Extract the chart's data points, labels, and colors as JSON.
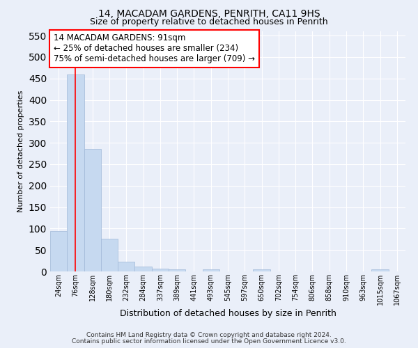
{
  "title1": "14, MACADAM GARDENS, PENRITH, CA11 9HS",
  "title2": "Size of property relative to detached houses in Penrith",
  "xlabel": "Distribution of detached houses by size in Penrith",
  "ylabel": "Number of detached properties",
  "categories": [
    "24sqm",
    "76sqm",
    "128sqm",
    "180sqm",
    "232sqm",
    "284sqm",
    "337sqm",
    "389sqm",
    "441sqm",
    "493sqm",
    "545sqm",
    "597sqm",
    "650sqm",
    "702sqm",
    "754sqm",
    "806sqm",
    "858sqm",
    "910sqm",
    "963sqm",
    "1015sqm",
    "1067sqm"
  ],
  "values": [
    94,
    460,
    286,
    76,
    22,
    11,
    6,
    5,
    0,
    5,
    0,
    0,
    5,
    0,
    0,
    0,
    0,
    0,
    0,
    5,
    0
  ],
  "bar_color": "#c6d9f0",
  "bar_edge_color": "#a0b8d8",
  "red_line_x": 1.0,
  "annotation_text": "14 MACADAM GARDENS: 91sqm\n← 25% of detached houses are smaller (234)\n75% of semi-detached houses are larger (709) →",
  "annotation_box_color": "white",
  "annotation_box_edge": "red",
  "footer1": "Contains HM Land Registry data © Crown copyright and database right 2024.",
  "footer2": "Contains public sector information licensed under the Open Government Licence v3.0.",
  "ylim": [
    0,
    560
  ],
  "yticks": [
    0,
    50,
    100,
    150,
    200,
    250,
    300,
    350,
    400,
    450,
    500,
    550
  ],
  "background_color": "#eaeff9",
  "fig_background_color": "#eaeff9",
  "grid_color": "#ffffff",
  "title1_fontsize": 10,
  "title2_fontsize": 9
}
